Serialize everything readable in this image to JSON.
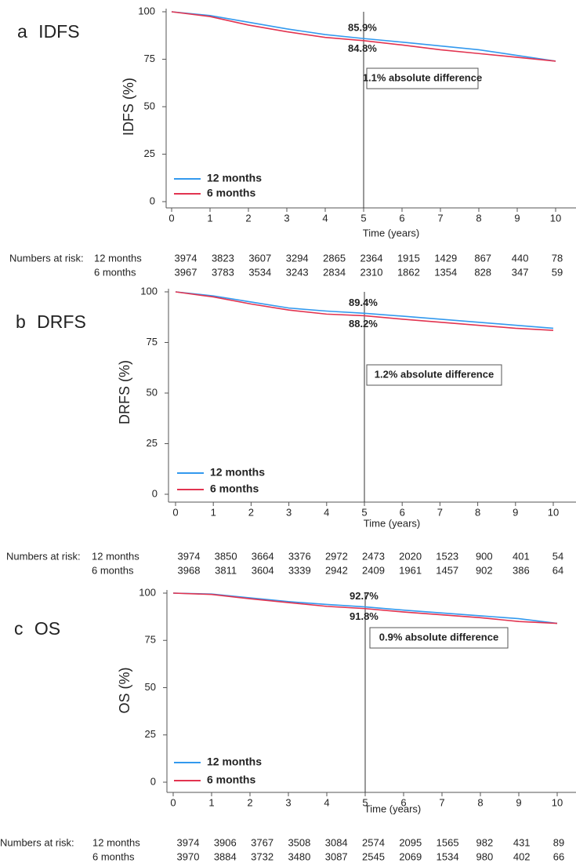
{
  "chart_data": [
    {
      "type": "line",
      "title": "a IDFS",
      "y_label": "IDFS (%)",
      "x_label": "Time (years)",
      "xlim": [
        0,
        10
      ],
      "xticks": [
        0,
        1,
        2,
        3,
        4,
        5,
        6,
        7,
        8,
        9,
        10
      ],
      "ylim": [
        0,
        100
      ],
      "yticks": [
        0,
        25,
        50,
        75,
        100
      ],
      "reference_x": 5,
      "x": [
        0,
        1,
        2,
        3,
        4,
        5,
        6,
        7,
        8,
        9,
        10
      ],
      "series": [
        {
          "name": "12 months",
          "color": "#3399ee",
          "values": [
            100,
            98,
            94.5,
            91,
            88,
            85.9,
            84,
            82,
            80,
            77,
            74
          ]
        },
        {
          "name": "6 months",
          "color": "#e23450",
          "values": [
            100,
            97.5,
            93,
            89.5,
            86.5,
            84.8,
            82.5,
            80,
            78,
            76,
            74
          ]
        }
      ],
      "annotations": [
        "85.9%",
        "84.8%",
        "1.1% absolute difference"
      ],
      "risk_table": {
        "label": "Numbers at risk:",
        "rows": [
          {
            "name": "12 months",
            "values": [
              3974,
              3823,
              3607,
              3294,
              2865,
              2364,
              1915,
              1429,
              867,
              440,
              78
            ]
          },
          {
            "name": "6 months",
            "values": [
              3967,
              3783,
              3534,
              3243,
              2834,
              2310,
              1862,
              1354,
              828,
              347,
              59
            ]
          }
        ]
      }
    },
    {
      "type": "line",
      "title": "b DRFS",
      "y_label": "DRFS (%)",
      "x_label": "Time (years)",
      "xlim": [
        0,
        10
      ],
      "xticks": [
        0,
        1,
        2,
        3,
        4,
        5,
        6,
        7,
        8,
        9,
        10
      ],
      "ylim": [
        0,
        100
      ],
      "yticks": [
        0,
        25,
        50,
        75,
        100
      ],
      "reference_x": 5,
      "x": [
        0,
        1,
        2,
        3,
        4,
        5,
        6,
        7,
        8,
        9,
        10
      ],
      "series": [
        {
          "name": "12 months",
          "color": "#3399ee",
          "values": [
            100,
            98,
            95,
            92,
            90.5,
            89.4,
            88,
            86.5,
            85,
            83.5,
            82
          ]
        },
        {
          "name": "6 months",
          "color": "#e23450",
          "values": [
            100,
            97.5,
            94,
            91,
            89,
            88.2,
            86.5,
            85,
            83.5,
            82,
            81
          ]
        }
      ],
      "annotations": [
        "89.4%",
        "88.2%",
        "1.2% absolute difference"
      ],
      "risk_table": {
        "label": "Numbers at risk:",
        "rows": [
          {
            "name": "12 months",
            "values": [
              3974,
              3850,
              3664,
              3376,
              2972,
              2473,
              2020,
              1523,
              900,
              401,
              54
            ]
          },
          {
            "name": "6 months",
            "values": [
              3968,
              3811,
              3604,
              3339,
              2942,
              2409,
              1961,
              1457,
              902,
              386,
              64
            ]
          }
        ]
      }
    },
    {
      "type": "line",
      "title": "c OS",
      "y_label": "OS (%)",
      "x_label": "Time (years)",
      "xlim": [
        0,
        10
      ],
      "xticks": [
        0,
        1,
        2,
        3,
        4,
        5,
        6,
        7,
        8,
        9,
        10
      ],
      "ylim": [
        0,
        100
      ],
      "yticks": [
        0,
        25,
        50,
        75,
        100
      ],
      "reference_x": 5,
      "x": [
        0,
        1,
        2,
        3,
        4,
        5,
        6,
        7,
        8,
        9,
        10
      ],
      "series": [
        {
          "name": "12 months",
          "color": "#3399ee",
          "values": [
            100,
            99.5,
            97.5,
            95.5,
            94,
            92.7,
            91,
            89.5,
            88,
            86.5,
            84
          ]
        },
        {
          "name": "6 months",
          "color": "#e23450",
          "values": [
            100,
            99.3,
            97,
            95,
            93,
            91.8,
            90,
            88.5,
            87,
            85,
            84
          ]
        }
      ],
      "annotations": [
        "92.7%",
        "91.8%",
        "0.9% absolute difference"
      ],
      "risk_table": {
        "label": "Numbers at risk:",
        "rows": [
          {
            "name": "12 months",
            "values": [
              3974,
              3906,
              3767,
              3508,
              3084,
              2574,
              2095,
              1565,
              982,
              431,
              89
            ]
          },
          {
            "name": "6 months",
            "values": [
              3970,
              3884,
              3732,
              3480,
              3087,
              2545,
              2069,
              1534,
              980,
              402,
              66
            ]
          }
        ]
      }
    }
  ]
}
